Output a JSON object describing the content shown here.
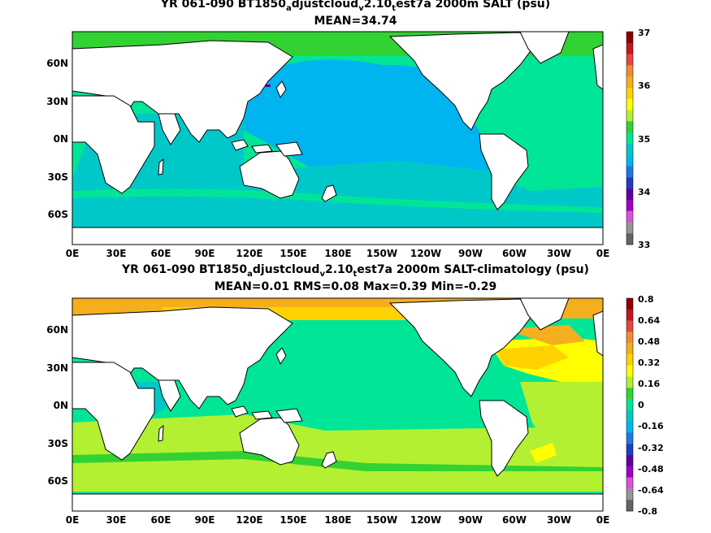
{
  "panel1": {
    "title_pre": "YR 061-090 BT1850",
    "title_sub1": "a",
    "title_mid": "djustcloud",
    "title_sub2": "v",
    "title_mid2": "2.10",
    "title_sub3": "t",
    "title_post": "est7a 2000m SALT (psu)",
    "stats": "MEAN=34.74",
    "colorbar_labels": [
      "37",
      "36",
      "35",
      "34",
      "33"
    ],
    "colorbar_colors": [
      "#8c0000",
      "#c8141e",
      "#e6463c",
      "#f08c32",
      "#f5af1e",
      "#ffd200",
      "#ffff00",
      "#b4f032",
      "#32d232",
      "#00e696",
      "#00c8c8",
      "#00b4f0",
      "#1e78e6",
      "#1e3cc8",
      "#5a00a0",
      "#a000c8",
      "#dc50dc",
      "#969696",
      "#646464"
    ]
  },
  "panel2": {
    "title_pre": "YR 061-090 BT1850",
    "title_sub1": "a",
    "title_mid": "djustcloud",
    "title_sub2": "v",
    "title_mid2": "2.10",
    "title_sub3": "t",
    "title_post": "est7a 2000m SALT-climatology (psu)",
    "stats": "MEAN=0.01   RMS=0.08   Max=0.39   Min=-0.29",
    "colorbar_labels": [
      "0.8",
      "0.64",
      "0.48",
      "0.32",
      "0.16",
      "0",
      "-0.16",
      "-0.32",
      "-0.48",
      "-0.64",
      "-0.8"
    ],
    "colorbar_colors": [
      "#8c0000",
      "#c8141e",
      "#e6463c",
      "#f08c32",
      "#f5af1e",
      "#ffd200",
      "#ffff00",
      "#b4f032",
      "#32d232",
      "#00e696",
      "#00c8c8",
      "#00b4f0",
      "#1e78e6",
      "#1e3cc8",
      "#5a00a0",
      "#a000c8",
      "#dc50dc",
      "#969696",
      "#646464"
    ]
  },
  "lat_labels": [
    "60N",
    "30N",
    "0N",
    "30S",
    "60S"
  ],
  "lon_labels": [
    "0E",
    "30E",
    "60E",
    "90E",
    "120E",
    "150E",
    "180E",
    "150W",
    "120W",
    "90W",
    "60W",
    "30W",
    "0E"
  ]
}
